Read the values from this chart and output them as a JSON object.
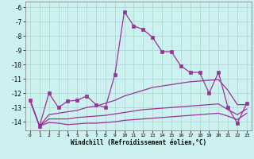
{
  "xlabel": "Windchill (Refroidissement éolien,°C)",
  "background_color": "#cdf0f0",
  "grid_color": "#aaddcc",
  "line_color": "#993399",
  "xlim": [
    -0.5,
    23.5
  ],
  "ylim": [
    -14.6,
    -5.6
  ],
  "yticks": [
    -14,
    -13,
    -12,
    -11,
    -10,
    -9,
    -8,
    -7,
    -6
  ],
  "xticks": [
    0,
    1,
    2,
    3,
    4,
    5,
    6,
    7,
    8,
    9,
    10,
    11,
    12,
    13,
    14,
    15,
    16,
    17,
    18,
    19,
    20,
    21,
    22,
    23
  ],
  "series": [
    {
      "x": [
        0,
        1,
        2,
        3,
        4,
        5,
        6,
        7,
        8,
        9,
        10,
        11,
        12,
        13,
        14,
        15,
        16,
        17,
        18,
        19,
        20,
        21,
        22,
        23
      ],
      "y": [
        -12.5,
        -14.3,
        -12.0,
        -13.0,
        -12.55,
        -12.5,
        -12.2,
        -12.8,
        -13.0,
        -10.7,
        -6.3,
        -7.3,
        -7.55,
        -8.1,
        -9.1,
        -9.1,
        -10.1,
        -10.55,
        -10.55,
        -12.0,
        -10.55,
        -13.0,
        -14.1,
        -12.7
      ],
      "has_marker": true,
      "markersize": 2.5
    },
    {
      "x": [
        0,
        1,
        2,
        3,
        4,
        5,
        6,
        7,
        8,
        9,
        10,
        11,
        12,
        13,
        14,
        15,
        16,
        17,
        18,
        19,
        20,
        21,
        22,
        23
      ],
      "y": [
        -12.5,
        -14.3,
        -13.5,
        -13.4,
        -13.3,
        -13.2,
        -13.0,
        -12.9,
        -12.7,
        -12.5,
        -12.2,
        -12.0,
        -11.8,
        -11.6,
        -11.5,
        -11.4,
        -11.3,
        -11.2,
        -11.15,
        -11.1,
        -11.05,
        -11.8,
        -12.8,
        -12.8
      ],
      "has_marker": false,
      "markersize": 0
    },
    {
      "x": [
        0,
        1,
        2,
        3,
        4,
        5,
        6,
        7,
        8,
        9,
        10,
        11,
        12,
        13,
        14,
        15,
        16,
        17,
        18,
        19,
        20,
        21,
        22,
        23
      ],
      "y": [
        -12.5,
        -14.3,
        -13.8,
        -13.8,
        -13.8,
        -13.7,
        -13.65,
        -13.6,
        -13.55,
        -13.45,
        -13.35,
        -13.25,
        -13.15,
        -13.1,
        -13.05,
        -13.0,
        -12.95,
        -12.9,
        -12.85,
        -12.8,
        -12.75,
        -13.15,
        -13.5,
        -13.1
      ],
      "has_marker": false,
      "markersize": 0
    },
    {
      "x": [
        0,
        1,
        2,
        3,
        4,
        5,
        6,
        7,
        8,
        9,
        10,
        11,
        12,
        13,
        14,
        15,
        16,
        17,
        18,
        19,
        20,
        21,
        22,
        23
      ],
      "y": [
        -12.5,
        -14.3,
        -14.05,
        -14.1,
        -14.2,
        -14.15,
        -14.1,
        -14.1,
        -14.05,
        -14.0,
        -13.9,
        -13.85,
        -13.8,
        -13.75,
        -13.7,
        -13.65,
        -13.6,
        -13.55,
        -13.5,
        -13.45,
        -13.4,
        -13.6,
        -13.85,
        -13.4
      ],
      "has_marker": false,
      "markersize": 0
    }
  ]
}
